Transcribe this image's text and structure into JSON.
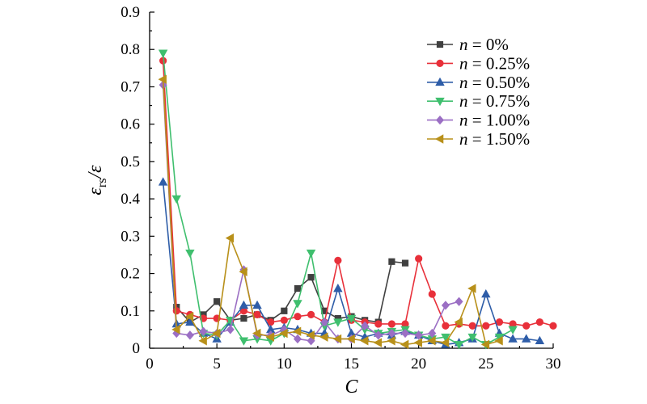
{
  "chart_data": {
    "type": "line",
    "xlabel": "C",
    "ylabel": "ε_rs/ε",
    "xlim": [
      0,
      30
    ],
    "ylim": [
      0,
      0.9
    ],
    "xticks": [
      0,
      5,
      10,
      15,
      20,
      25,
      30
    ],
    "yticks": [
      0,
      0.1,
      0.2,
      0.3,
      0.4,
      0.5,
      0.6,
      0.7,
      0.8,
      0.9
    ],
    "grid": false,
    "legend_position": "top-right",
    "series": [
      {
        "name": "n = 0%",
        "color": "#404040",
        "marker": "square",
        "x": [
          2,
          3,
          4,
          5,
          6,
          7,
          8,
          9,
          10,
          11,
          12,
          13,
          14,
          15,
          16,
          17,
          18,
          19
        ],
        "y": [
          0.11,
          0.07,
          0.09,
          0.125,
          0.075,
          0.08,
          0.09,
          0.075,
          0.1,
          0.16,
          0.19,
          0.1,
          0.08,
          0.085,
          0.075,
          0.07,
          0.232,
          0.228
        ]
      },
      {
        "name": "n = 0.25%",
        "color": "#e8303a",
        "marker": "circle",
        "x": [
          1,
          2,
          3,
          4,
          5,
          6,
          7,
          8,
          9,
          10,
          11,
          12,
          13,
          14,
          15,
          16,
          17,
          18,
          19,
          20,
          21,
          22,
          23,
          24,
          25,
          26,
          27,
          28,
          29,
          30
        ],
        "y": [
          0.77,
          0.1,
          0.09,
          0.08,
          0.08,
          0.075,
          0.1,
          0.09,
          0.07,
          0.075,
          0.085,
          0.09,
          0.07,
          0.235,
          0.075,
          0.07,
          0.065,
          0.065,
          0.065,
          0.24,
          0.145,
          0.06,
          0.065,
          0.06,
          0.06,
          0.07,
          0.065,
          0.06,
          0.07,
          0.06
        ]
      },
      {
        "name": "n = 0.50%",
        "color": "#2e5da8",
        "marker": "triangle-up",
        "x": [
          1,
          2,
          3,
          4,
          5,
          6,
          7,
          8,
          9,
          10,
          11,
          12,
          13,
          14,
          15,
          16,
          17,
          18,
          19,
          20,
          21,
          22,
          23,
          24,
          25,
          26,
          27,
          28,
          29
        ],
        "y": [
          0.445,
          0.065,
          0.07,
          0.04,
          0.025,
          0.07,
          0.115,
          0.115,
          0.05,
          0.055,
          0.05,
          0.04,
          0.04,
          0.16,
          0.04,
          0.03,
          0.04,
          0.035,
          0.045,
          0.035,
          0.02,
          0.01,
          0.015,
          0.025,
          0.145,
          0.04,
          0.025,
          0.025,
          0.02
        ]
      },
      {
        "name": "n = 0.75%",
        "color": "#3fbf6e",
        "marker": "triangle-down",
        "x": [
          1,
          2,
          3,
          4,
          5,
          6,
          7,
          8,
          9,
          10,
          11,
          12,
          13,
          14,
          15,
          16,
          17,
          18,
          19,
          20,
          21,
          22,
          23,
          24,
          25,
          26,
          27
        ],
        "y": [
          0.79,
          0.4,
          0.255,
          0.04,
          0.035,
          0.075,
          0.02,
          0.025,
          0.02,
          0.04,
          0.12,
          0.255,
          0.06,
          0.07,
          0.08,
          0.05,
          0.04,
          0.045,
          0.05,
          0.035,
          0.025,
          0.03,
          0.01,
          0.03,
          0.01,
          0.03,
          0.05
        ]
      },
      {
        "name": "n = 1.00%",
        "color": "#9b6fc4",
        "marker": "diamond",
        "x": [
          1,
          2,
          3,
          4,
          5,
          6,
          7,
          8,
          9,
          10,
          11,
          12,
          13,
          14,
          15,
          16,
          17,
          18,
          19,
          20,
          21,
          22,
          23
        ],
        "y": [
          0.705,
          0.04,
          0.035,
          0.045,
          0.04,
          0.05,
          0.21,
          0.035,
          0.035,
          0.05,
          0.025,
          0.02,
          0.07,
          0.025,
          0.025,
          0.06,
          0.035,
          0.04,
          0.04,
          0.035,
          0.04,
          0.115,
          0.125
        ]
      },
      {
        "name": "n = 1.50%",
        "color": "#b8901a",
        "marker": "triangle-left",
        "x": [
          1,
          2,
          3,
          4,
          5,
          6,
          7,
          8,
          9,
          10,
          11,
          12,
          13,
          14,
          15,
          16,
          17,
          18,
          19,
          20,
          21,
          22,
          23,
          24,
          25,
          26
        ],
        "y": [
          0.72,
          0.05,
          0.085,
          0.02,
          0.04,
          0.295,
          0.205,
          0.04,
          0.03,
          0.04,
          0.045,
          0.035,
          0.03,
          0.025,
          0.025,
          0.02,
          0.015,
          0.02,
          0.01,
          0.015,
          0.02,
          0.015,
          0.07,
          0.16,
          0.01,
          0.02
        ]
      }
    ]
  }
}
